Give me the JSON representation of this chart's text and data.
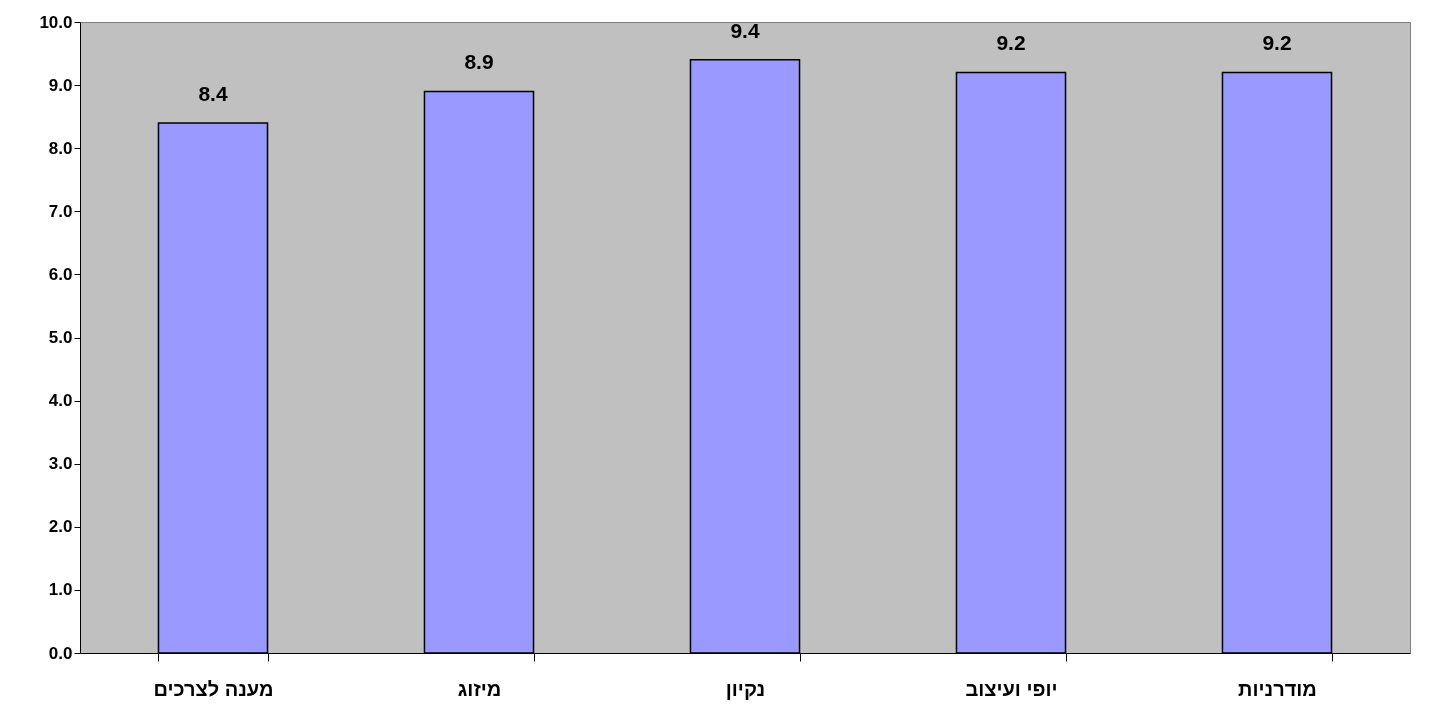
{
  "chart_data": {
    "type": "bar",
    "categories": [
      "מענה לצרכים",
      "מיזוג",
      "נקיון",
      "יופי ועיצוב",
      "מודרניות"
    ],
    "values": [
      8.4,
      8.9,
      9.4,
      9.2,
      9.2
    ],
    "color": "#9999ff",
    "data_labels": true,
    "ylim": [
      0,
      10
    ],
    "yticks": [
      {
        "value": 0,
        "label": "0.0"
      },
      {
        "value": 1,
        "label": "1.0"
      },
      {
        "value": 2,
        "label": "2.0"
      },
      {
        "value": 3,
        "label": "3.0"
      },
      {
        "value": 4,
        "label": "4.0"
      },
      {
        "value": 5,
        "label": "5.0"
      },
      {
        "value": 6,
        "label": "6.0"
      },
      {
        "value": 7,
        "label": "7.0"
      },
      {
        "value": 8,
        "label": "8.0"
      },
      {
        "value": 9,
        "label": "9.0"
      },
      {
        "value": 10,
        "label": "10.0"
      }
    ]
  }
}
